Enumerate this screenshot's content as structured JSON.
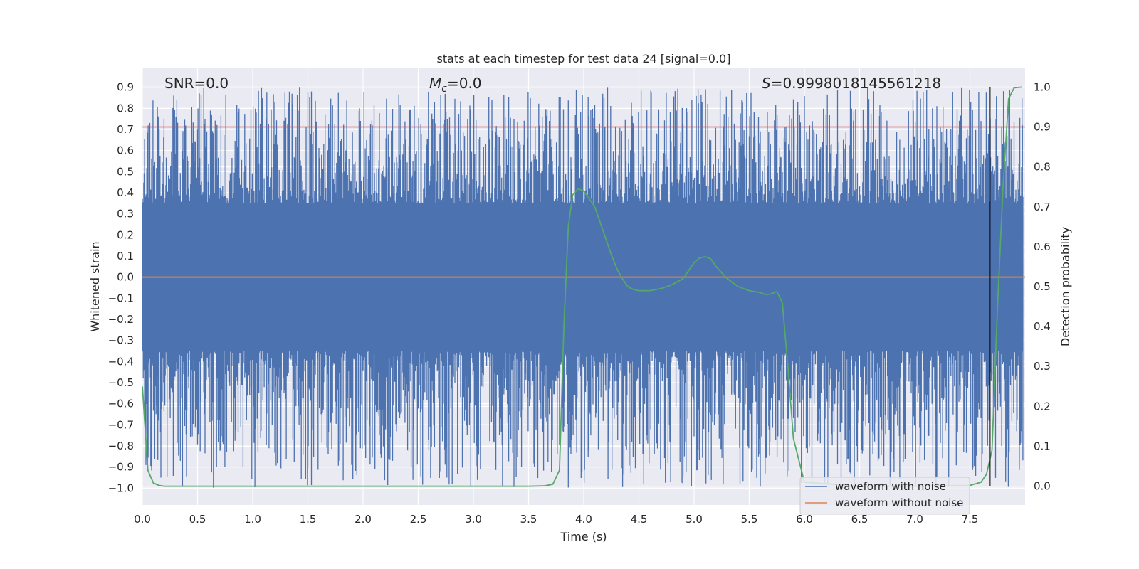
{
  "chart_data": {
    "type": "line",
    "title": "stats at each timestep for test data 24 [signal=0.0]",
    "xlabel": "Time (s)",
    "ylabel": "Whitened strain",
    "y2label": "Detection probability",
    "xlim": [
      0,
      8.0
    ],
    "ylim": [
      -1.08,
      0.99
    ],
    "y2lim": [
      -0.047,
      1.047
    ],
    "x_ticks": [
      0.0,
      0.5,
      1.0,
      1.5,
      2.0,
      2.5,
      3.0,
      3.5,
      4.0,
      4.5,
      5.0,
      5.5,
      6.0,
      6.5,
      7.0,
      7.5
    ],
    "y_ticks": [
      0.9,
      0.8,
      0.7,
      0.6,
      0.5,
      0.4,
      0.3,
      0.2,
      0.1,
      0.0,
      -0.1,
      -0.2,
      -0.3,
      -0.4,
      -0.5,
      -0.6,
      -0.7,
      -0.8,
      -0.9,
      -1.0
    ],
    "y2_ticks": [
      1.0,
      0.9,
      0.8,
      0.7,
      0.6,
      0.5,
      0.4,
      0.3,
      0.2,
      0.1,
      0.0
    ],
    "grid": true,
    "legend_position": "bottom-right",
    "annotations": {
      "snr": "SNR=0.0",
      "mc_symbol": "M",
      "mc_sub": "c",
      "mc_value": "=0.0",
      "s_symbol": "S",
      "s_value": "=0.9998018145561218"
    },
    "series": [
      {
        "name": "waveform with noise",
        "color": "#4c72b0",
        "kind": "noise",
        "envelope_x": [
          0.0,
          1.0,
          2.0,
          3.0,
          4.0,
          5.0,
          6.0,
          7.0,
          7.98
        ],
        "envelope_pos": [
          0.35,
          0.35,
          0.35,
          0.35,
          0.35,
          0.35,
          0.35,
          0.35,
          0.35
        ],
        "envelope_neg": [
          -0.35,
          -0.35,
          -0.35,
          -0.35,
          -0.35,
          -0.35,
          -0.35,
          -0.35,
          -0.35
        ],
        "peak_max": 0.9,
        "peak_min": -1.0
      },
      {
        "name": "waveform without noise",
        "color": "#dd8452",
        "x": [
          0.0,
          8.0
        ],
        "y": [
          0.0,
          0.0
        ]
      },
      {
        "name": "detection probability",
        "color": "#55a868",
        "axis": "right",
        "x": [
          0.0,
          0.05,
          0.1,
          0.15,
          0.2,
          0.3,
          1.0,
          2.0,
          3.0,
          3.5,
          3.65,
          3.72,
          3.78,
          3.82,
          3.86,
          3.9,
          3.95,
          4.0,
          4.05,
          4.1,
          4.15,
          4.2,
          4.25,
          4.3,
          4.35,
          4.4,
          4.45,
          4.5,
          4.6,
          4.7,
          4.8,
          4.9,
          4.95,
          5.0,
          5.05,
          5.1,
          5.15,
          5.2,
          5.3,
          5.4,
          5.5,
          5.6,
          5.65,
          5.7,
          5.75,
          5.8,
          5.85,
          5.9,
          6.0,
          6.5,
          7.0,
          7.5,
          7.6,
          7.65,
          7.7,
          7.75,
          7.8,
          7.85,
          7.9,
          7.97
        ],
        "y": [
          0.25,
          0.04,
          0.008,
          0.002,
          0.0,
          0.0,
          0.0,
          0.0,
          0.0,
          0.0,
          0.001,
          0.005,
          0.04,
          0.4,
          0.65,
          0.73,
          0.745,
          0.74,
          0.72,
          0.7,
          0.66,
          0.62,
          0.58,
          0.545,
          0.52,
          0.5,
          0.493,
          0.49,
          0.49,
          0.495,
          0.505,
          0.52,
          0.54,
          0.56,
          0.572,
          0.575,
          0.57,
          0.55,
          0.52,
          0.5,
          0.49,
          0.485,
          0.48,
          0.482,
          0.488,
          0.46,
          0.3,
          0.12,
          0.01,
          0.0,
          0.0,
          0.002,
          0.01,
          0.03,
          0.09,
          0.45,
          0.75,
          0.97,
          0.998,
          1.0
        ]
      }
    ],
    "hlines": [
      {
        "axis": "right",
        "y": 0.9,
        "color": "#c44e52"
      }
    ],
    "vlines": [
      {
        "x": 7.68,
        "color": "#000000",
        "y2_range": [
          0.0,
          1.0
        ]
      }
    ]
  }
}
